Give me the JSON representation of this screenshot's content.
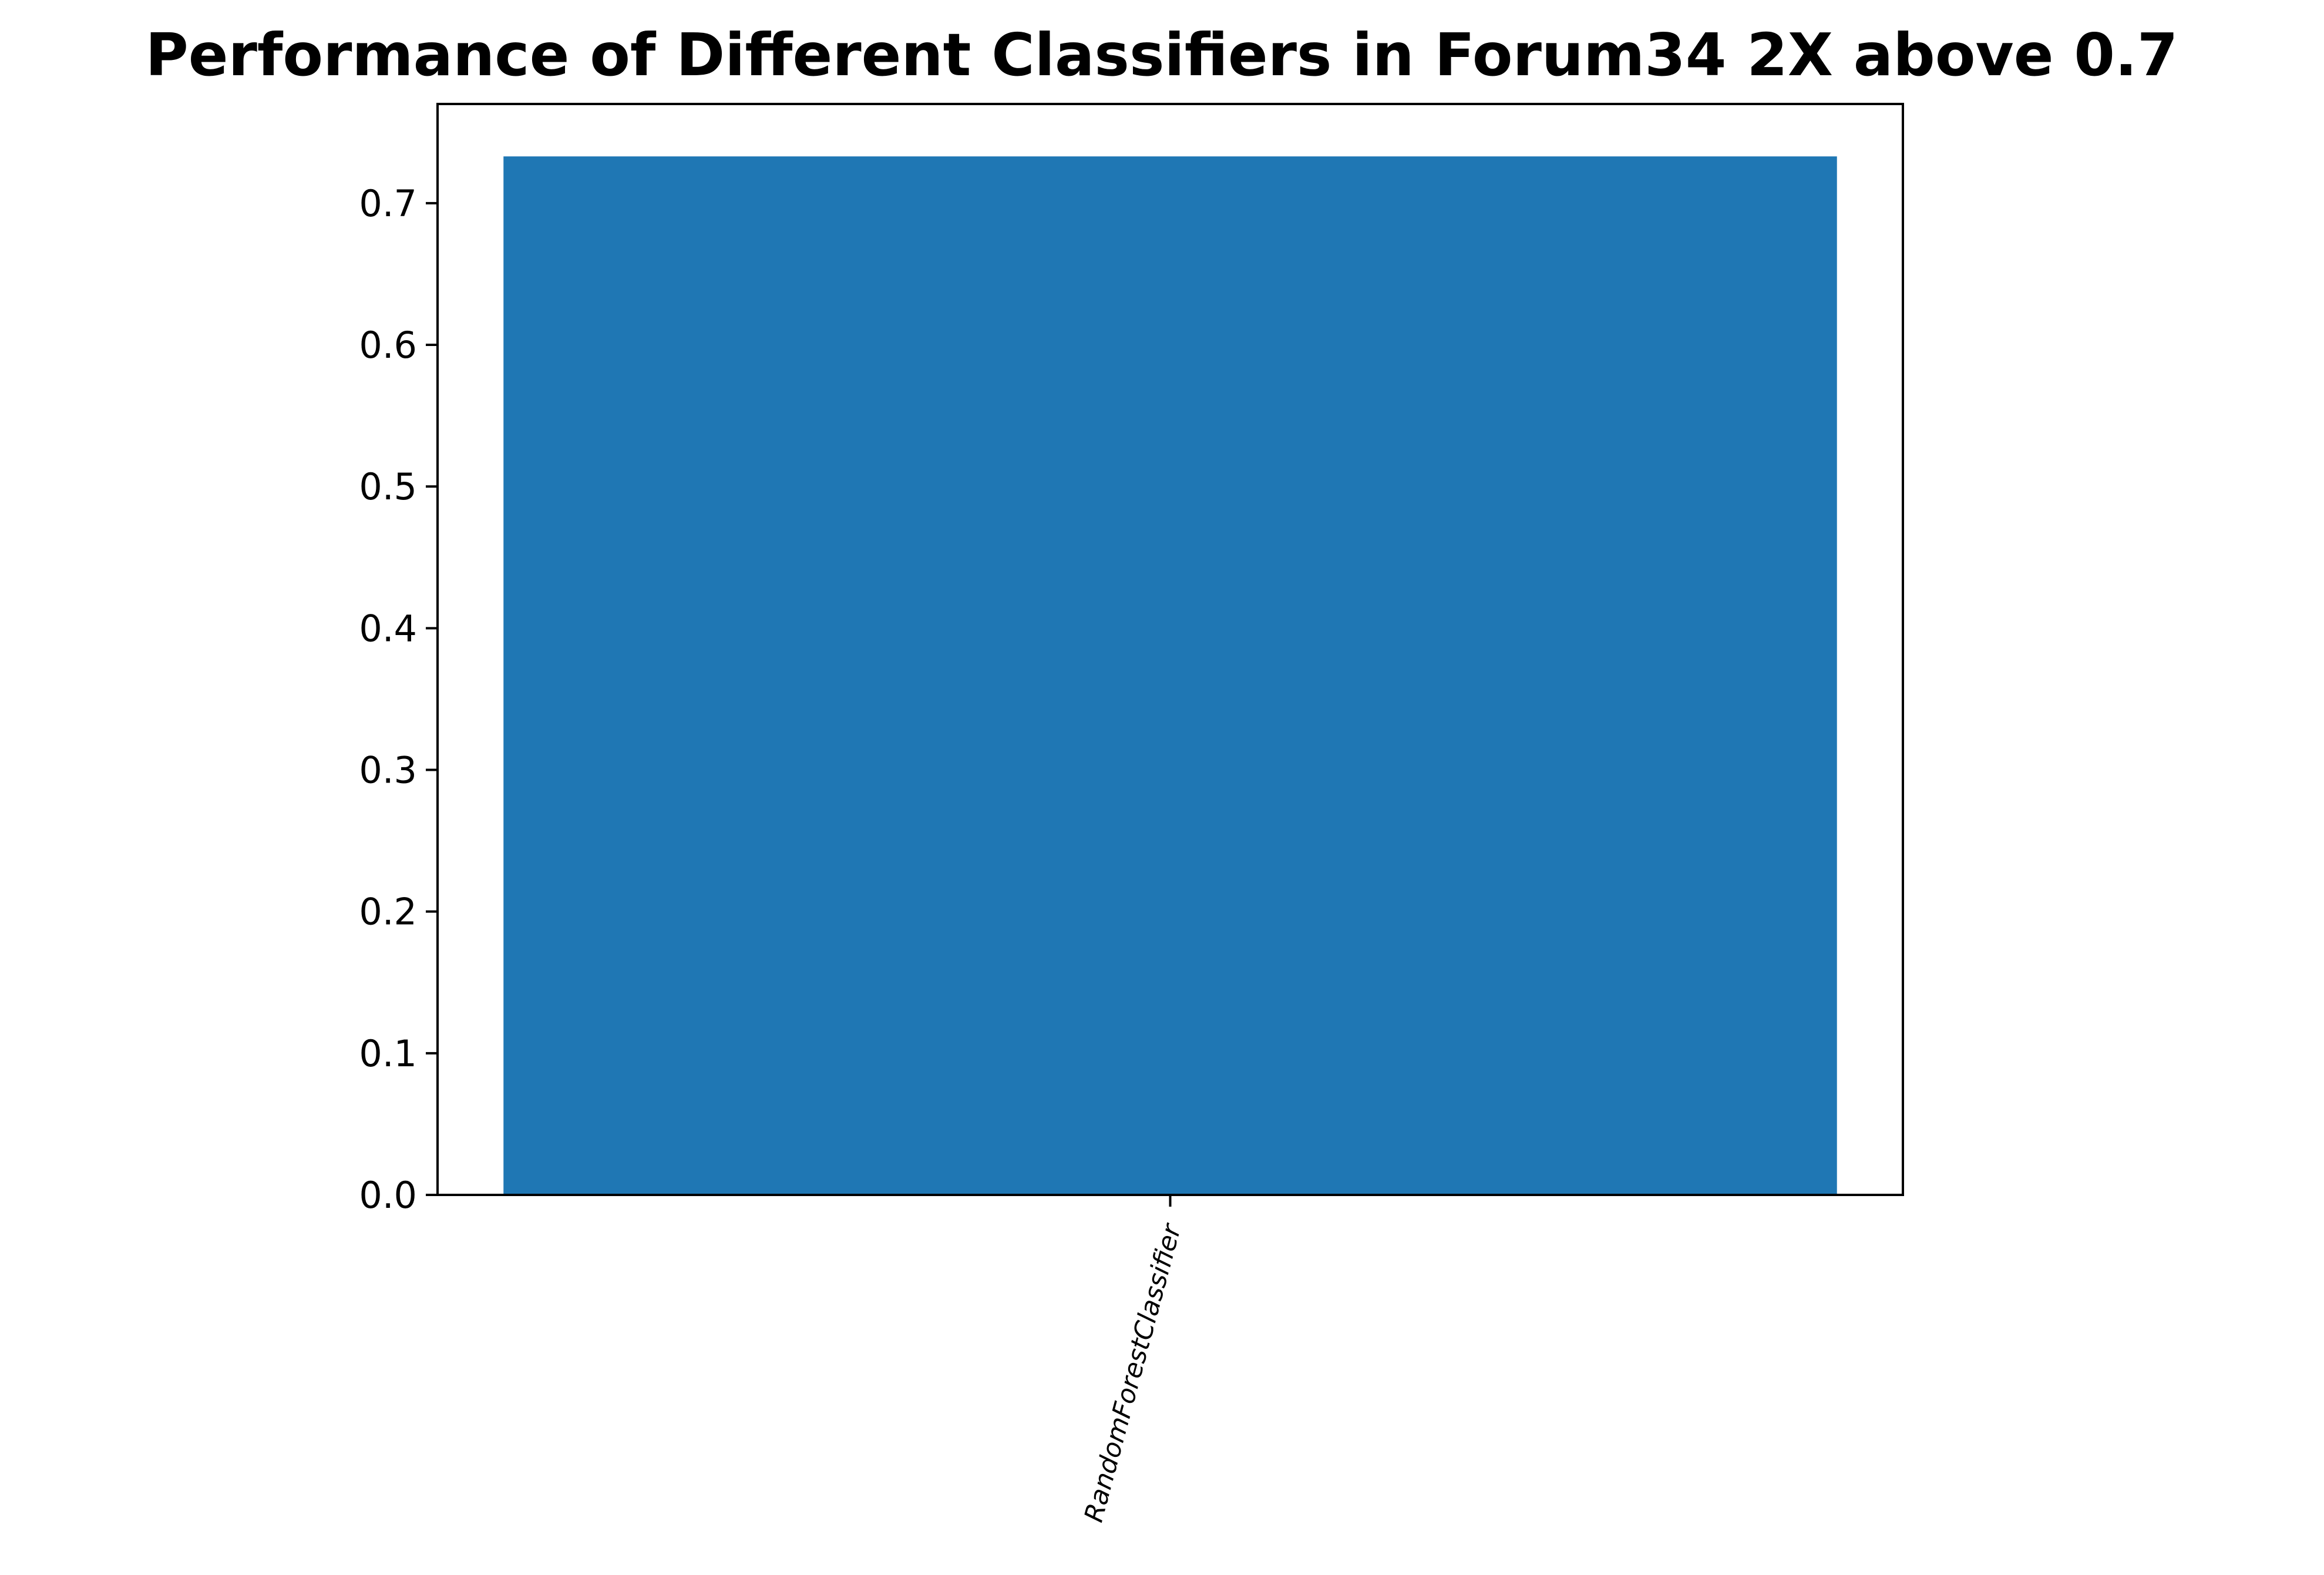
{
  "chart_data": {
    "type": "bar",
    "title": "Performance of Different Classifiers in Forum34 2X above 0.7",
    "xlabel": "",
    "ylabel": "",
    "categories": [
      "RandomForestClassifier"
    ],
    "values": [
      0.733
    ],
    "ylim": [
      0,
      0.77
    ],
    "yticks": [
      0.0,
      0.1,
      0.2,
      0.3,
      0.4,
      0.5,
      0.6,
      0.7
    ],
    "ytick_labels": [
      "0.0",
      "0.1",
      "0.2",
      "0.3",
      "0.4",
      "0.5",
      "0.6",
      "0.7"
    ],
    "grid": false,
    "legend": "none",
    "bar_color": "#1f77b4",
    "axis_color": "#000000"
  }
}
